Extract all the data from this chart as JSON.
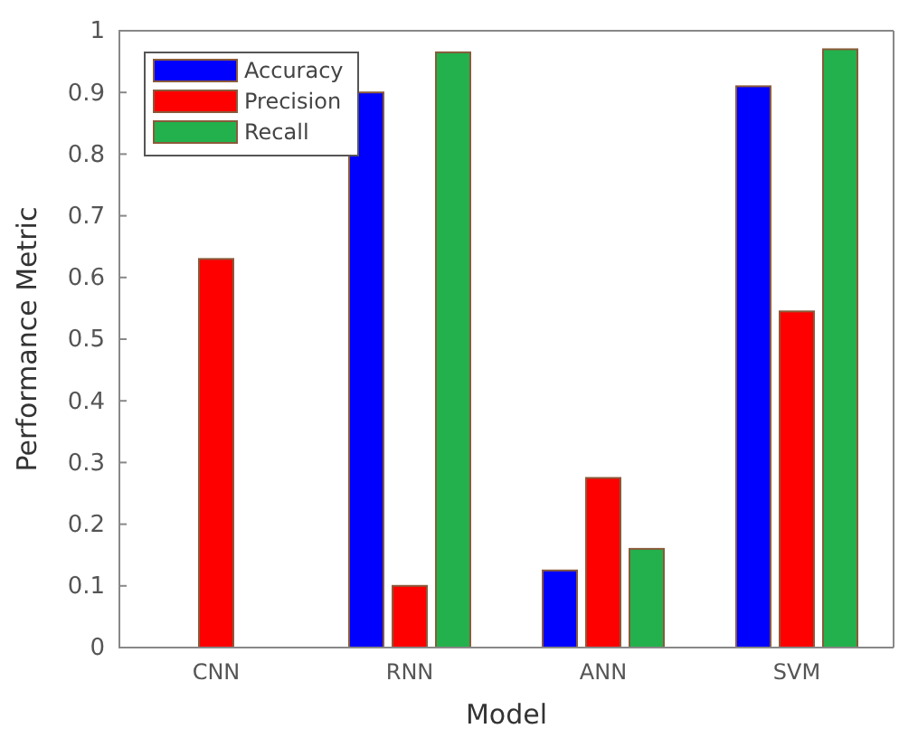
{
  "chart_data": {
    "type": "bar",
    "xlabel": "Model",
    "ylabel": "Performance Metric",
    "categories": [
      "CNN",
      "RNN",
      "ANN",
      "SVM"
    ],
    "series": [
      {
        "name": "Accuracy",
        "color": "#0000ff",
        "values": [
          null,
          0.9,
          0.125,
          0.91
        ]
      },
      {
        "name": "Precision",
        "color": "#ff0000",
        "values": [
          0.63,
          0.1,
          0.275,
          0.545
        ]
      },
      {
        "name": "Recall",
        "color": "#22b14c",
        "values": [
          null,
          0.965,
          0.16,
          0.97
        ]
      }
    ],
    "ylim": [
      0,
      1
    ],
    "yticks": [
      0,
      0.1,
      0.2,
      0.3,
      0.4,
      0.5,
      0.6,
      0.7,
      0.8,
      0.9,
      1
    ],
    "legend": "top left",
    "grid": false
  }
}
